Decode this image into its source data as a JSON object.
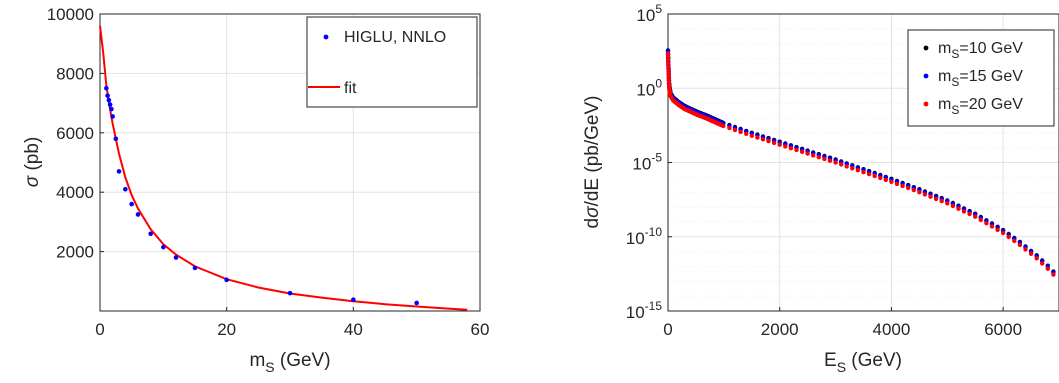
{
  "chart_data": [
    {
      "type": "scatter",
      "xlim": [
        0,
        60
      ],
      "ylim": [
        0,
        10000
      ],
      "xticks": [
        0,
        20,
        40,
        60
      ],
      "yticks": [
        2000,
        4000,
        6000,
        8000,
        10000
      ],
      "xtick_labels": [
        "0",
        "20",
        "40",
        "60"
      ],
      "ytick_labels": [
        "2000",
        "4000",
        "6000",
        "8000",
        "10000"
      ],
      "xlabel": "m",
      "xlabel_sub": "S",
      "xlabel_tail": " (GeV)",
      "ylabel_sym": "σ",
      "ylabel_tail": " (pb)",
      "grid": true,
      "legend_position": "top-right",
      "series": [
        {
          "name": "HIGLU, NNLO",
          "color": "#0000ff",
          "style": "markers",
          "x": [
            1,
            1.2,
            1.4,
            1.6,
            1.8,
            2,
            2.5,
            3,
            4,
            5,
            6,
            8,
            10,
            12,
            15,
            20,
            30,
            40,
            50
          ],
          "y": [
            7500,
            7250,
            7100,
            6950,
            6800,
            6550,
            5800,
            4700,
            4100,
            3600,
            3250,
            2600,
            2150,
            1800,
            1450,
            1050,
            600,
            380,
            270
          ]
        },
        {
          "name": "fit",
          "color": "#ff0000",
          "style": "line",
          "x": [
            0,
            0.5,
            1,
            1.5,
            2,
            3,
            4,
            5,
            6,
            8,
            10,
            12,
            15,
            20,
            25,
            30,
            35,
            40,
            45,
            50,
            55,
            58
          ],
          "y": [
            9600,
            8700,
            7600,
            6900,
            6300,
            5300,
            4500,
            3900,
            3450,
            2750,
            2250,
            1900,
            1500,
            1070,
            790,
            590,
            450,
            330,
            230,
            150,
            80,
            40
          ]
        }
      ]
    },
    {
      "type": "scatter",
      "log_y": true,
      "xlim": [
        0,
        7000
      ],
      "ylim_exp": [
        -15,
        5
      ],
      "xticks": [
        0,
        2000,
        4000,
        6000
      ],
      "xtick_labels": [
        "0",
        "2000",
        "4000",
        "6000"
      ],
      "ytick_base": "10",
      "ytick_exps": [
        "-15",
        "-10",
        "-5",
        "0",
        "5"
      ],
      "xlabel": "E",
      "xlabel_sub": "S",
      "xlabel_tail": " (GeV)",
      "ylabel_pre": "d",
      "ylabel_sym": "σ",
      "ylabel_tail": "/dE (pb/GeV)",
      "grid": true,
      "legend_position": "top-right",
      "series": [
        {
          "name_pre": "m",
          "name_sub": "S",
          "name_tail": "=10 GeV",
          "color": "#000000",
          "offset_decades": 0.05
        },
        {
          "name_pre": "m",
          "name_sub": "S",
          "name_tail": "=15 GeV",
          "color": "#0000ff",
          "offset_decades": 0.0
        },
        {
          "name_pre": "m",
          "name_sub": "S",
          "name_tail": "=20 GeV",
          "color": "#ff0000",
          "offset_decades": -0.15
        }
      ],
      "curve_x_gev": [
        0,
        10,
        20,
        30,
        50,
        100,
        200,
        300,
        500,
        700,
        1000,
        1500,
        2000,
        2500,
        3000,
        3500,
        4000,
        4500,
        5000,
        5500,
        6000,
        6300,
        6600,
        6800,
        7000
      ],
      "curve_log10_y": [
        2.5,
        1.3,
        0.3,
        -0.1,
        -0.4,
        -0.7,
        -1.0,
        -1.25,
        -1.6,
        -1.9,
        -2.4,
        -3.05,
        -3.65,
        -4.25,
        -4.85,
        -5.5,
        -6.15,
        -6.85,
        -7.6,
        -8.5,
        -9.6,
        -10.4,
        -11.3,
        -12.0,
        -12.8
      ]
    }
  ]
}
